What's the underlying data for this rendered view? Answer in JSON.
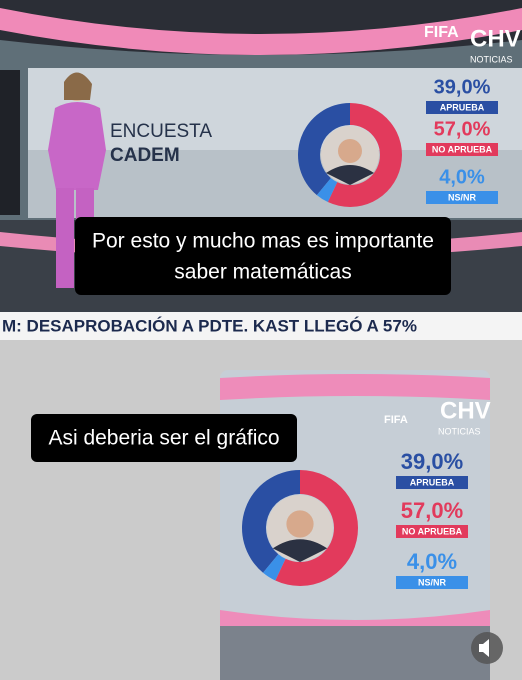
{
  "post": {
    "top_caption": [
      "Por esto y mucho mas es importante",
      "saber matemáticas"
    ],
    "bottom_caption": "Asi deberia ser el gráfico"
  },
  "broadcast": {
    "survey": "ENCUESTA",
    "pollster": "CADEM",
    "ticker": "M: DESAPROBACIÓN A PDTE. KAST LLEGÓ A 57%",
    "channel": "CHV",
    "channel_sub": "NOTICIAS",
    "badge": "FIFA"
  },
  "chart_data": [
    {
      "type": "donut",
      "categories": [
        "APRUEBA",
        "NO APRUEBA",
        "NS/NR"
      ],
      "values": [
        39,
        57,
        4
      ],
      "value_labels": [
        "39,0%",
        "57,0%",
        "4,0%"
      ],
      "colors": [
        "#2a4fa3",
        "#e23a5c",
        "#3a90e8"
      ]
    },
    {
      "type": "donut",
      "categories": [
        "APRUEBA",
        "NO APRUEBA",
        "NS/NR"
      ],
      "values": [
        39,
        57,
        4
      ],
      "value_labels": [
        "39,0%",
        "57,0%",
        "4,0%"
      ],
      "colors": [
        "#2a4fa3",
        "#e23a5c",
        "#3a90e8"
      ]
    }
  ]
}
